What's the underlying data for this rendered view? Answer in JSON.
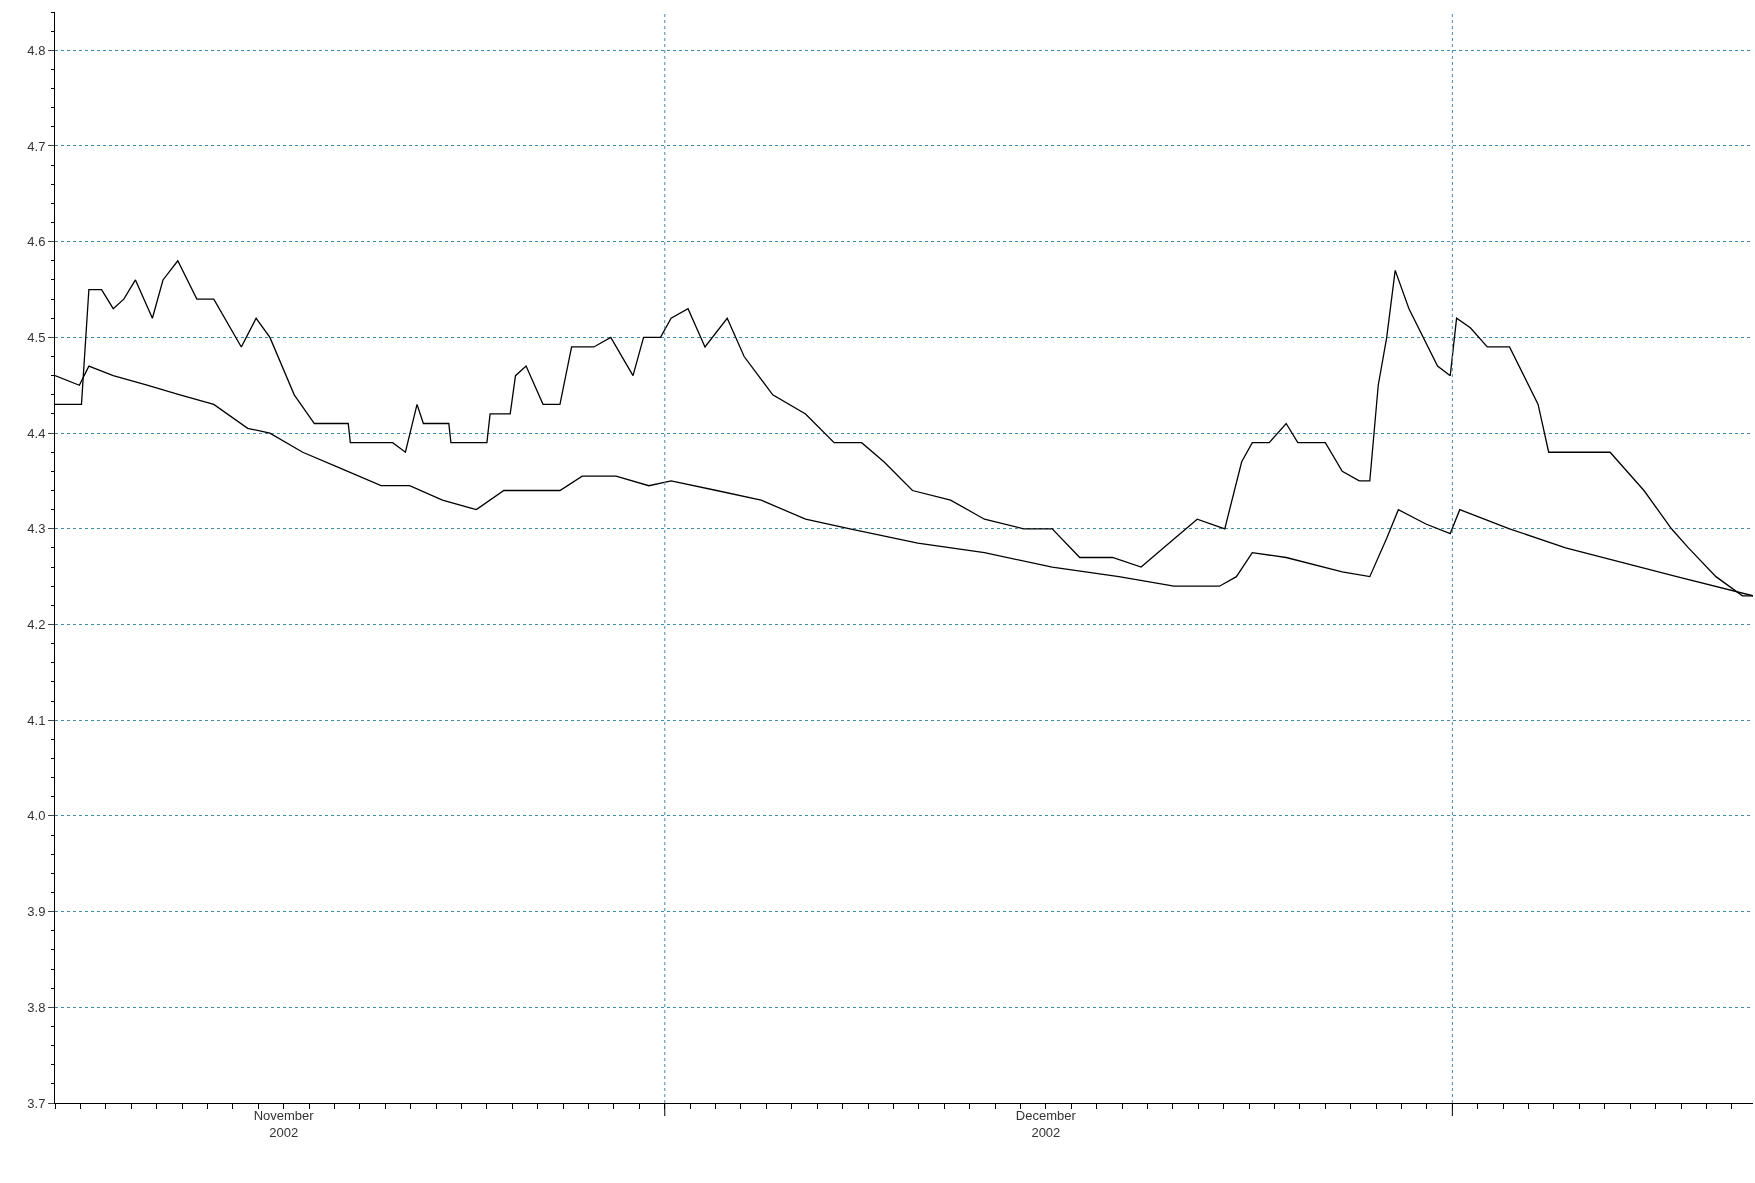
{
  "chart_data": {
    "type": "line",
    "xlim": [
      "2002-11-07",
      "2003-01-12T20:00"
    ],
    "xticks": [
      {
        "value": "2002-11-16",
        "label": "November\n2002"
      },
      {
        "value": "2002-12-16",
        "label": "December\n2002"
      },
      {
        "value": "2002-12-01",
        "label": null
      },
      {
        "value": "2003-01-01",
        "label": null
      }
    ],
    "ylim": [
      3.7,
      4.84
    ],
    "yticks": [
      3.7,
      3.8,
      3.9,
      {
        "value": 4.0,
        "label": "4.0"
      },
      4.1,
      4.2,
      4.3,
      4.4,
      4.5,
      4.6,
      4.7,
      4.8
    ],
    "grid": true,
    "line_style": "solid",
    "legend": false,
    "series": [
      {
        "color": "#000000",
        "x": [
          "2002-11-07T00:00",
          "2002-11-08T01:00",
          "2002-11-08T08:00",
          "2002-11-08T20:00",
          "2002-11-09T07:00",
          "2002-11-09T17:00",
          "2002-11-10T04:00",
          "2002-11-10T20:00",
          "2002-11-11T06:00",
          "2002-11-11T20:00",
          "2002-11-12T14:00",
          "2002-11-13T06:00",
          "2002-11-14T08:00",
          "2002-11-14T22:00",
          "2002-11-15T11:00",
          "2002-11-16T10:00",
          "2002-11-17T05:00",
          "2002-11-18T13:00",
          "2002-11-18T15:00",
          "2002-11-20T07:00",
          "2002-11-20T19:00",
          "2002-11-21T06:00",
          "2002-11-21T12:00",
          "2002-11-22T12:00",
          "2002-11-22T14:00",
          "2002-11-24T00:00",
          "2002-11-24T03:00",
          "2002-11-24T22:00",
          "2002-11-25T03:00",
          "2002-11-25T13:00",
          "2002-11-26T05:00",
          "2002-11-26T21:00",
          "2002-11-27T08:00",
          "2002-11-28T05:00",
          "2002-11-28T21:00",
          "2002-11-29T18:00",
          "2002-11-30T04:00",
          "2002-11-30T20:00",
          "2002-12-01T06:00",
          "2002-12-01T22:00",
          "2002-12-02T14:00",
          "2002-12-03T11:00",
          "2002-12-04T03:00",
          "2002-12-05T06:00",
          "2002-12-06T13:00",
          "2002-12-07T16:00",
          "2002-12-08T18:00",
          "2002-12-09T15:00",
          "2002-12-10T18:00",
          "2002-12-12T06:00",
          "2002-12-13T14:00",
          "2002-12-15T03:00",
          "2002-12-16T06:00",
          "2002-12-17T08:00",
          "2002-12-18T15:00",
          "2002-12-19T18:00",
          "2002-12-20T15:00",
          "2002-12-21T23:00",
          "2002-12-23T01:00",
          "2002-12-23T17:00",
          "2002-12-24T03:00",
          "2002-12-24T19:00",
          "2002-12-25T11:00",
          "2002-12-25T22:00",
          "2002-12-27T00:00",
          "2002-12-27T16:00",
          "2002-12-28T08:00",
          "2002-12-28T18:00",
          "2002-12-29T02:00",
          "2002-12-29T10:00",
          "2002-12-29T18:00",
          "2002-12-30T07:00",
          "2002-12-31T10:00",
          "2002-12-31T22:00",
          "2003-01-01T04:00",
          "2003-01-01T17:00",
          "2003-01-02T09:00",
          "2003-01-03T06:00",
          "2003-01-04T09:00",
          "2003-01-04T19:00",
          "2003-01-06T08:00",
          "2003-01-07T05:00",
          "2003-01-08T13:00",
          "2003-01-09T15:00",
          "2003-01-10T07:00",
          "2003-01-11T09:00",
          "2003-01-12T10:00",
          "2003-01-12T20:00"
        ],
        "values": [
          4.43,
          4.43,
          4.55,
          4.55,
          4.53,
          4.54,
          4.56,
          4.52,
          4.56,
          4.58,
          4.54,
          4.54,
          4.49,
          4.52,
          4.5,
          4.44,
          4.41,
          4.41,
          4.39,
          4.39,
          4.38,
          4.43,
          4.41,
          4.41,
          4.39,
          4.39,
          4.42,
          4.42,
          4.46,
          4.47,
          4.43,
          4.43,
          4.49,
          4.49,
          4.5,
          4.46,
          4.5,
          4.5,
          4.52,
          4.53,
          4.49,
          4.52,
          4.48,
          4.44,
          4.42,
          4.39,
          4.39,
          4.37,
          4.34,
          4.33,
          4.31,
          4.3,
          4.3,
          4.27,
          4.27,
          4.26,
          4.28,
          4.31,
          4.3,
          4.37,
          4.39,
          4.39,
          4.41,
          4.39,
          4.39,
          4.36,
          4.35,
          4.35,
          4.45,
          4.5,
          4.57,
          4.53,
          4.47,
          4.46,
          4.52,
          4.51,
          4.49,
          4.49,
          4.43,
          4.38,
          4.38,
          4.38,
          4.34,
          4.3,
          4.28,
          4.25,
          4.23,
          4.23
        ]
      },
      {
        "color": "#000000",
        "x": [
          "2002-11-07T00:00",
          "2002-11-07T23:00",
          "2002-11-08T08:00",
          "2002-11-09T07:00",
          "2002-11-10T15:00",
          "2002-11-11T22:00",
          "2002-11-13T06:00",
          "2002-11-14T14:00",
          "2002-11-15T11:00",
          "2002-11-16T18:00",
          "2002-11-18T02:00",
          "2002-11-19T20:00",
          "2002-11-20T23:00",
          "2002-11-22T06:00",
          "2002-11-23T14:00",
          "2002-11-24T16:00",
          "2002-11-26T00:00",
          "2002-11-26T21:00",
          "2002-11-27T18:00",
          "2002-11-29T02:00",
          "2002-11-30T09:00",
          "2002-12-01T06:00",
          "2002-12-03T01:00",
          "2002-12-04T19:00",
          "2002-12-06T13:00",
          "2002-12-08T07:00",
          "2002-12-10T23:00",
          "2002-12-13T14:00",
          "2002-12-16T06:00",
          "2002-12-18T21:00",
          "2002-12-21T01:00",
          "2002-12-22T20:00",
          "2002-12-23T12:00",
          "2002-12-24T03:00",
          "2002-12-25T11:00",
          "2002-12-27T16:00",
          "2002-12-28T18:00",
          "2002-12-29T10:00",
          "2002-12-29T21:00",
          "2002-12-30T23:00",
          "2002-12-31T22:00",
          "2003-01-01T07:00",
          "2003-01-03T06:00",
          "2003-01-05T11:00",
          "2003-01-07T16:00",
          "2003-01-09T20:00",
          "2003-01-12T20:00"
        ],
        "values": [
          4.46,
          4.45,
          4.47,
          4.46,
          4.45,
          4.44,
          4.43,
          4.405,
          4.4,
          4.38,
          4.365,
          4.345,
          4.345,
          4.33,
          4.32,
          4.34,
          4.34,
          4.34,
          4.355,
          4.355,
          4.345,
          4.35,
          4.34,
          4.33,
          4.31,
          4.3,
          4.285,
          4.275,
          4.26,
          4.25,
          4.24,
          4.24,
          4.25,
          4.275,
          4.27,
          4.255,
          4.25,
          4.29,
          4.32,
          4.305,
          4.295,
          4.32,
          4.3,
          4.28,
          4.265,
          4.25,
          4.23
        ]
      }
    ]
  }
}
